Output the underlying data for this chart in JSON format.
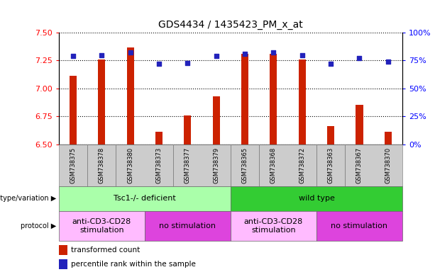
{
  "title": "GDS4434 / 1435423_PM_x_at",
  "samples": [
    "GSM738375",
    "GSM738378",
    "GSM738380",
    "GSM738373",
    "GSM738377",
    "GSM738379",
    "GSM738365",
    "GSM738368",
    "GSM738372",
    "GSM738363",
    "GSM738367",
    "GSM738370"
  ],
  "red_values": [
    7.11,
    7.26,
    7.37,
    6.61,
    6.76,
    6.93,
    7.31,
    7.31,
    7.26,
    6.66,
    6.85,
    6.61
  ],
  "blue_values": [
    79,
    80,
    82,
    72,
    73,
    79,
    81,
    82,
    80,
    72,
    77,
    74
  ],
  "ylim_left": [
    6.5,
    7.5
  ],
  "ylim_right": [
    0,
    100
  ],
  "yticks_left": [
    6.5,
    6.75,
    7.0,
    7.25,
    7.5
  ],
  "yticks_right": [
    0,
    25,
    50,
    75,
    100
  ],
  "ytick_labels_right": [
    "0%",
    "25%",
    "50%",
    "75%",
    "100%"
  ],
  "bar_color": "#cc2200",
  "dot_color": "#2222bb",
  "bar_width": 0.25,
  "bar_bottom": 6.5,
  "dot_size": 20,
  "genotype_groups": [
    {
      "label": "Tsc1-/- deficient",
      "start": 0,
      "end": 6,
      "color": "#aaffaa"
    },
    {
      "label": "wild type",
      "start": 6,
      "end": 12,
      "color": "#33cc33"
    }
  ],
  "protocol_groups": [
    {
      "label": "anti-CD3-CD28\nstimulation",
      "start": 0,
      "end": 3,
      "color": "#ffbbff"
    },
    {
      "label": "no stimulation",
      "start": 3,
      "end": 6,
      "color": "#dd44dd"
    },
    {
      "label": "anti-CD3-CD28\nstimulation",
      "start": 6,
      "end": 9,
      "color": "#ffbbff"
    },
    {
      "label": "no stimulation",
      "start": 9,
      "end": 12,
      "color": "#dd44dd"
    }
  ],
  "legend_red_label": "transformed count",
  "legend_blue_label": "percentile rank within the sample",
  "geno_label": "genotype/variation",
  "proto_label": "protocol"
}
